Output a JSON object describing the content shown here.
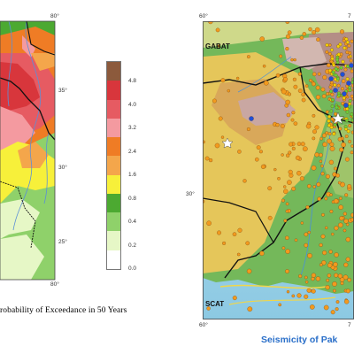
{
  "hazard_panel": {
    "ticks": {
      "top_right": "80°",
      "lat_35": "35°",
      "lat_30": "30°",
      "lat_25": "25°",
      "bottom_right": "80°"
    },
    "legend": {
      "colors": [
        "#ffffff",
        "#e6f7c6",
        "#8fd16a",
        "#4ca931",
        "#f7f03a",
        "#f4a64b",
        "#ef7c25",
        "#f49aa0",
        "#e65b62",
        "#d8363c",
        "#8c5a3c"
      ],
      "labels": [
        "0.0",
        "0.2",
        "0.4",
        "0.8",
        "1.6",
        "2.4",
        "3.2",
        "4.0",
        "4.8"
      ]
    },
    "caption": "robability of Exceedance in 50 Years"
  },
  "seismicity_panel": {
    "ticks": {
      "top_left": "60°",
      "top_right": "7",
      "lat_30": "30°",
      "bottom_left": "60°",
      "bottom_right": "7"
    },
    "labels": {
      "north": "GABAT",
      "south": "SCAT"
    },
    "caption": "Seismicity of Pak"
  }
}
